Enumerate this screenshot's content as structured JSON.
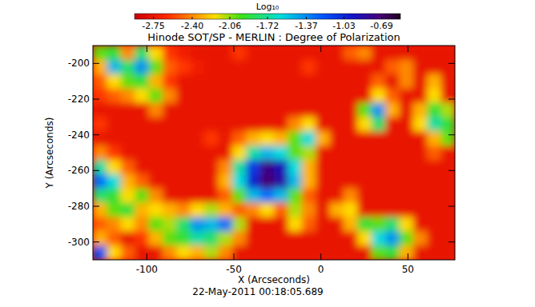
{
  "chart_data": {
    "type": "heatmap",
    "title": "Hinode SOT/SP - MERLIN : Degree of Polarization",
    "x_label": "X (Arcseconds)",
    "y_label": "Y (Arcseconds)",
    "date": "22-May-2011 00:18:05.689",
    "xlim": [
      -131,
      77
    ],
    "ylim": [
      -310,
      -190
    ],
    "xticks": [
      -100,
      -50,
      0,
      50
    ],
    "yticks": [
      -200,
      -220,
      -240,
      -260,
      -280,
      -300
    ],
    "x_bins": [
      -131,
      -123,
      -115,
      -107,
      -99,
      -91,
      -83,
      -75,
      -67,
      -59,
      -51,
      -43,
      -35,
      -27,
      -19,
      -11,
      -3,
      5,
      13,
      21,
      29,
      37,
      45,
      53,
      61,
      69,
      77
    ],
    "y_bins": [
      -190,
      -198,
      -206,
      -214,
      -222,
      -230,
      -238,
      -246,
      -254,
      -262,
      -270,
      -278,
      -286,
      -294,
      -302,
      -310
    ],
    "colorbar": {
      "title": "Log₁₀",
      "range": [
        -2.92,
        -0.52
      ],
      "ticks": [
        -2.75,
        -2.4,
        -2.06,
        -1.72,
        -1.37,
        -1.03,
        -0.69
      ]
    },
    "cells": [
      [
        -2.0,
        -1.9,
        -2.4,
        -1.8,
        -2.2,
        -2.6,
        -2.7,
        -2.75,
        -2.75,
        -2.75,
        -2.6,
        -2.75,
        -2.75,
        -2.75,
        -2.75,
        -2.75,
        -2.75,
        -2.75,
        -2.5,
        -2.4,
        -2.75,
        -2.75,
        -2.75,
        -2.75,
        -2.75,
        -2.75
      ],
      [
        -2.3,
        -1.5,
        -1.8,
        -1.4,
        -2.0,
        -2.5,
        -2.6,
        -2.7,
        -2.75,
        -2.75,
        -2.75,
        -2.75,
        -2.75,
        -2.75,
        -2.75,
        -2.6,
        -2.75,
        -2.75,
        -2.75,
        -2.75,
        -2.75,
        -2.5,
        -2.4,
        -2.75,
        -2.75,
        -2.75
      ],
      [
        -2.5,
        -2.2,
        -2.0,
        -1.9,
        -2.3,
        -2.6,
        -2.75,
        -2.75,
        -2.75,
        -2.75,
        -2.75,
        -2.75,
        -2.75,
        -2.75,
        -2.75,
        -2.75,
        -2.75,
        -2.75,
        -2.75,
        -2.75,
        -2.5,
        -2.75,
        -2.4,
        -2.75,
        -2.3,
        -2.75
      ],
      [
        -2.6,
        -2.5,
        -2.4,
        -2.2,
        -2.0,
        -2.4,
        -2.75,
        -2.75,
        -2.75,
        -2.75,
        -2.75,
        -2.75,
        -2.75,
        -2.75,
        -2.75,
        -2.75,
        -2.75,
        -2.75,
        -2.75,
        -2.75,
        -2.2,
        -2.5,
        -2.75,
        -2.75,
        -2.2,
        -2.75
      ],
      [
        -2.75,
        -2.75,
        -2.75,
        -2.75,
        -2.4,
        -2.75,
        -2.75,
        -2.75,
        -2.75,
        -2.75,
        -2.75,
        -2.75,
        -2.75,
        -2.75,
        -2.75,
        -2.75,
        -2.75,
        -2.75,
        -2.75,
        -2.0,
        -1.4,
        -2.3,
        -2.75,
        -2.3,
        -1.9,
        -2.1
      ],
      [
        -2.6,
        -2.75,
        -2.75,
        -2.75,
        -2.75,
        -2.75,
        -2.75,
        -2.75,
        -2.75,
        -2.75,
        -2.75,
        -2.75,
        -2.75,
        -2.75,
        -2.4,
        -2.2,
        -2.75,
        -2.75,
        -2.75,
        -2.2,
        -1.8,
        -2.75,
        -2.75,
        -2.2,
        -1.7,
        -1.9
      ],
      [
        -2.75,
        -2.75,
        -2.75,
        -2.75,
        -2.75,
        -2.75,
        -2.75,
        -2.75,
        -2.6,
        -2.75,
        -2.5,
        -2.3,
        -2.2,
        -2.3,
        -2.0,
        -1.6,
        -2.3,
        -2.75,
        -2.75,
        -2.75,
        -2.75,
        -2.75,
        -2.75,
        -2.75,
        -2.3,
        -2.0
      ],
      [
        -2.4,
        -2.6,
        -2.75,
        -2.75,
        -2.75,
        -2.75,
        -2.75,
        -2.75,
        -2.75,
        -2.75,
        -2.2,
        -1.7,
        -1.5,
        -1.6,
        -2.0,
        -2.1,
        -2.75,
        -2.75,
        -2.75,
        -2.75,
        -2.75,
        -2.75,
        -2.75,
        -2.75,
        -2.5,
        -2.75
      ],
      [
        -1.7,
        -2.2,
        -2.5,
        -2.75,
        -2.75,
        -2.75,
        -2.75,
        -2.75,
        -2.75,
        -2.4,
        -1.7,
        -1.1,
        -0.75,
        -0.9,
        -1.6,
        -2.3,
        -2.75,
        -2.75,
        -2.75,
        -2.75,
        -2.75,
        -2.75,
        -2.75,
        -2.75,
        -2.75,
        -2.75
      ],
      [
        -1.3,
        -1.6,
        -2.3,
        -2.5,
        -2.75,
        -2.75,
        -2.75,
        -2.75,
        -2.75,
        -2.3,
        -1.6,
        -1.0,
        -0.7,
        -0.85,
        -1.5,
        -2.3,
        -2.75,
        -2.75,
        -2.75,
        -2.75,
        -2.75,
        -2.75,
        -2.75,
        -2.75,
        -2.75,
        -2.75
      ],
      [
        -1.8,
        -1.9,
        -2.2,
        -2.0,
        -2.4,
        -2.75,
        -2.75,
        -2.75,
        -2.75,
        -2.5,
        -2.0,
        -1.5,
        -1.3,
        -1.5,
        -2.0,
        -2.5,
        -2.75,
        -2.75,
        -2.4,
        -2.75,
        -2.75,
        -2.75,
        -2.75,
        -2.75,
        -2.75,
        -2.75
      ],
      [
        -2.3,
        -2.0,
        -1.9,
        -2.3,
        -2.2,
        -2.3,
        -2.4,
        -2.2,
        -2.1,
        -2.3,
        -2.5,
        -2.4,
        -2.2,
        -2.5,
        -2.1,
        -2.4,
        -2.75,
        -2.3,
        -2.2,
        -2.75,
        -2.75,
        -2.75,
        -2.75,
        -2.75,
        -2.75,
        -2.75
      ],
      [
        -2.5,
        -2.4,
        -2.2,
        -2.4,
        -2.0,
        -2.1,
        -1.8,
        -1.4,
        -1.5,
        -1.3,
        -2.1,
        -2.75,
        -2.75,
        -2.75,
        -2.2,
        -2.5,
        -2.75,
        -2.75,
        -2.3,
        -1.9,
        -2.0,
        -1.8,
        -2.2,
        -2.75,
        -2.75,
        -2.75
      ],
      [
        -2.3,
        -2.5,
        -2.75,
        -2.6,
        -2.3,
        -2.0,
        -1.9,
        -1.7,
        -1.8,
        -2.1,
        -2.4,
        -2.75,
        -2.75,
        -2.75,
        -2.75,
        -2.75,
        -2.75,
        -2.75,
        -2.75,
        -2.2,
        -1.6,
        -1.4,
        -2.0,
        -2.4,
        -2.75,
        -2.75
      ],
      [
        -1.2,
        -2.2,
        -2.5,
        -2.75,
        -2.75,
        -2.4,
        -2.2,
        -2.3,
        -2.1,
        -2.4,
        -2.75,
        -2.75,
        -2.75,
        -2.75,
        -2.75,
        -2.75,
        -2.75,
        -2.75,
        -2.75,
        -2.75,
        -2.0,
        -1.9,
        -2.3,
        -2.75,
        -2.75,
        -2.75
      ]
    ]
  }
}
